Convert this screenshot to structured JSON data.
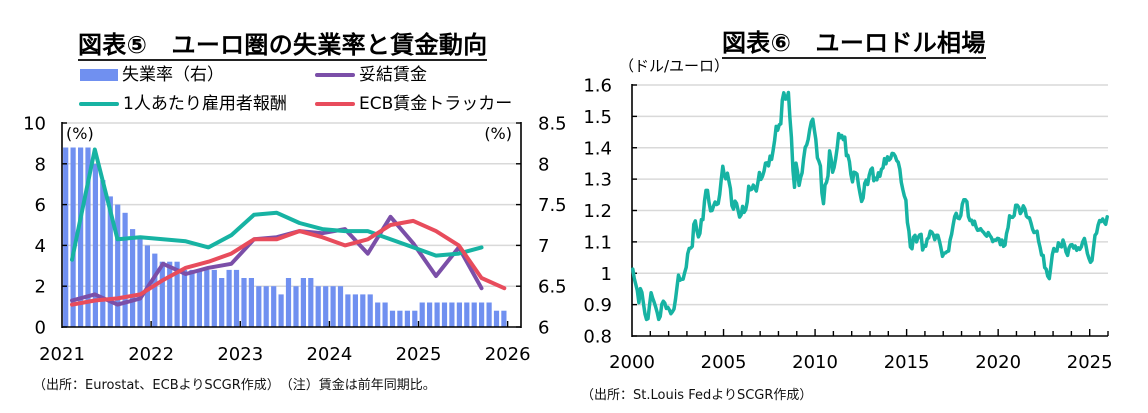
{
  "panels": {
    "left": {
      "title": "図表⑤　ユーロ圏の失業率と賃金動向",
      "legend": [
        {
          "label": "失業率（右）",
          "marker": "bar",
          "color": "#7090f0"
        },
        {
          "label": "妥結賃金",
          "marker": "line",
          "color": "#7b4fa8"
        },
        {
          "label": "1人あたり雇用者報酬",
          "marker": "line",
          "color": "#17b3a3"
        },
        {
          "label": "ECB賃金トラッカー",
          "marker": "line",
          "color": "#e84c5c"
        }
      ],
      "footnote": "（出所：Eurostat、ECBよりSCGR作成）　（注）賃金は前年同期比。"
    },
    "right": {
      "title": "図表⑥　ユーロドル相場",
      "unit_label": "（ドル/ユーロ）",
      "footnote": "（出所：St.Louis FedよりSCGR作成）"
    }
  },
  "chart_data": [
    {
      "type": "bar+line",
      "title": "図表⑤　ユーロ圏の失業率と賃金動向",
      "grid": true,
      "legend_position": "top",
      "x_axis": {
        "range": [
          2021,
          2026.15
        ],
        "ticks": [
          2021,
          2022,
          2023,
          2024,
          2025,
          2026
        ],
        "tick_labels": [
          "2021",
          "2022",
          "2023",
          "2024",
          "2025",
          "2026"
        ]
      },
      "y_left": {
        "unit_label": "(%)",
        "range": [
          0,
          10
        ],
        "ticks": [
          0,
          2,
          4,
          6,
          8,
          10
        ],
        "tick_labels": [
          "0",
          "2",
          "4",
          "6",
          "8",
          "10"
        ]
      },
      "y_right": {
        "unit_label": "(%)",
        "range": [
          6,
          8.5
        ],
        "ticks": [
          6,
          6.5,
          7,
          7.5,
          8,
          8.5
        ],
        "tick_labels": [
          "6",
          "6.5",
          "7",
          "7.5",
          "8",
          "8.5"
        ]
      },
      "bar_series": {
        "name": "失業率（右）",
        "axis": "right",
        "frequency": "monthly",
        "start": "2021-01",
        "color": "#7090f0",
        "values": [
          8.2,
          8.2,
          8.2,
          8.2,
          8.0,
          7.8,
          7.6,
          7.5,
          7.4,
          7.2,
          7.1,
          7.0,
          6.9,
          6.8,
          6.8,
          6.8,
          6.7,
          6.7,
          6.7,
          6.7,
          6.7,
          6.6,
          6.7,
          6.7,
          6.6,
          6.6,
          6.5,
          6.5,
          6.5,
          6.4,
          6.6,
          6.5,
          6.6,
          6.6,
          6.5,
          6.5,
          6.5,
          6.5,
          6.4,
          6.4,
          6.4,
          6.4,
          6.3,
          6.3,
          6.2,
          6.2,
          6.2,
          6.2,
          6.3,
          6.3,
          6.3,
          6.3,
          6.3,
          6.3,
          6.3,
          6.3,
          6.3,
          6.3,
          6.2,
          6.2
        ]
      },
      "quarters": [
        "2021Q1",
        "2021Q2",
        "2021Q3",
        "2021Q4",
        "2022Q1",
        "2022Q2",
        "2022Q3",
        "2022Q4",
        "2023Q1",
        "2023Q2",
        "2023Q3",
        "2023Q4",
        "2024Q1",
        "2024Q2",
        "2024Q3",
        "2024Q4",
        "2025Q1",
        "2025Q2",
        "2025Q3",
        "2025Q4"
      ],
      "line_series": [
        {
          "name": "妥結賃金",
          "axis": "left",
          "color": "#7b4fa8",
          "values": [
            1.3,
            1.6,
            1.1,
            1.4,
            3.1,
            2.6,
            2.9,
            3.1,
            4.3,
            4.4,
            4.7,
            4.6,
            4.8,
            3.6,
            5.4,
            4.1,
            2.5,
            3.9,
            1.9
          ]
        },
        {
          "name": "1人あたり雇用者報酬",
          "axis": "left",
          "color": "#17b3a3",
          "values": [
            3.3,
            8.7,
            4.3,
            4.4,
            4.3,
            4.2,
            3.9,
            4.5,
            5.5,
            5.6,
            5.1,
            4.8,
            4.7,
            4.7,
            4.3,
            3.9,
            3.5,
            3.6,
            3.9
          ]
        },
        {
          "name": "ECB賃金トラッカー",
          "axis": "left",
          "color": "#e84c5c",
          "values": [
            1.1,
            1.3,
            1.4,
            1.6,
            2.3,
            2.9,
            3.2,
            3.6,
            4.3,
            4.3,
            4.7,
            4.4,
            4.0,
            4.3,
            5.0,
            5.2,
            4.7,
            4.0,
            2.4,
            1.9
          ]
        }
      ]
    },
    {
      "type": "line",
      "title": "図表⑥　ユーロドル相場",
      "ylabel": "（ドル/ユーロ）",
      "grid": true,
      "legend_position": "none",
      "x_axis": {
        "range": [
          2000,
          2026
        ],
        "minor_tick_step": 1,
        "major_ticks": [
          2000,
          2005,
          2010,
          2015,
          2020,
          2025
        ],
        "tick_labels": [
          "2000",
          "2005",
          "2010",
          "2015",
          "2020",
          "2025"
        ]
      },
      "y_axis": {
        "range": [
          0.8,
          1.6
        ],
        "ticks": [
          0.8,
          0.9,
          1.0,
          1.1,
          1.2,
          1.3,
          1.4,
          1.5,
          1.6
        ],
        "tick_labels": [
          "0.8",
          "0.9",
          "1",
          "1.1",
          "1.2",
          "1.3",
          "1.4",
          "1.5",
          "1.6"
        ]
      },
      "series": [
        {
          "name": "EUR/USD",
          "frequency": "monthly",
          "start": "2000-01",
          "color": "#17b3a3",
          "values": [
            1.013,
            0.983,
            0.964,
            0.945,
            0.906,
            0.951,
            0.939,
            0.905,
            0.87,
            0.853,
            0.855,
            0.898,
            0.938,
            0.921,
            0.908,
            0.893,
            0.875,
            0.853,
            0.862,
            0.901,
            0.911,
            0.905,
            0.888,
            0.891,
            0.883,
            0.871,
            0.877,
            0.886,
            0.917,
            0.956,
            0.994,
            0.978,
            0.981,
            0.981,
            1.001,
            1.019,
            1.062,
            1.079,
            1.08,
            1.086,
            1.156,
            1.167,
            1.137,
            1.116,
            1.127,
            1.171,
            1.171,
            1.23,
            1.264,
            1.264,
            1.226,
            1.199,
            1.2,
            1.215,
            1.227,
            1.219,
            1.222,
            1.251,
            1.3,
            1.341,
            1.312,
            1.301,
            1.319,
            1.294,
            1.27,
            1.216,
            1.204,
            1.23,
            1.223,
            1.202,
            1.179,
            1.186,
            1.213,
            1.194,
            1.203,
            1.227,
            1.277,
            1.266,
            1.268,
            1.281,
            1.272,
            1.262,
            1.289,
            1.321,
            1.299,
            1.308,
            1.325,
            1.351,
            1.352,
            1.342,
            1.373,
            1.363,
            1.391,
            1.423,
            1.468,
            1.456,
            1.473,
            1.476,
            1.552,
            1.575,
            1.555,
            1.556,
            1.576,
            1.496,
            1.434,
            1.327,
            1.274,
            1.351,
            1.324,
            1.28,
            1.305,
            1.32,
            1.365,
            1.401,
            1.409,
            1.427,
            1.458,
            1.482,
            1.491,
            1.458,
            1.427,
            1.368,
            1.357,
            1.342,
            1.256,
            1.222,
            1.281,
            1.29,
            1.31,
            1.39,
            1.365,
            1.322,
            1.337,
            1.366,
            1.4,
            1.445,
            1.432,
            1.439,
            1.426,
            1.434,
            1.375,
            1.376,
            1.356,
            1.315,
            1.291,
            1.322,
            1.32,
            1.316,
            1.279,
            1.253,
            1.229,
            1.24,
            1.286,
            1.297,
            1.283,
            1.312,
            1.33,
            1.335,
            1.295,
            1.303,
            1.298,
            1.32,
            1.309,
            1.331,
            1.336,
            1.365,
            1.349,
            1.371,
            1.361,
            1.366,
            1.382,
            1.381,
            1.373,
            1.359,
            1.354,
            1.332,
            1.29,
            1.267,
            1.247,
            1.233,
            1.162,
            1.135,
            1.084,
            1.078,
            1.115,
            1.121,
            1.1,
            1.114,
            1.122,
            1.124,
            1.074,
            1.088,
            1.086,
            1.109,
            1.113,
            1.134,
            1.131,
            1.123,
            1.107,
            1.121,
            1.121,
            1.103,
            1.081,
            1.054,
            1.064,
            1.065,
            1.069,
            1.071,
            1.106,
            1.124,
            1.153,
            1.181,
            1.191,
            1.176,
            1.174,
            1.184,
            1.22,
            1.234,
            1.234,
            1.228,
            1.181,
            1.168,
            1.169,
            1.155,
            1.166,
            1.148,
            1.137,
            1.138,
            1.142,
            1.135,
            1.13,
            1.123,
            1.118,
            1.13,
            1.121,
            1.114,
            1.101,
            1.106,
            1.105,
            1.111,
            1.11,
            1.091,
            1.106,
            1.086,
            1.09,
            1.126,
            1.146,
            1.183,
            1.179,
            1.178,
            1.184,
            1.217,
            1.217,
            1.21,
            1.19,
            1.198,
            1.215,
            1.205,
            1.182,
            1.177,
            1.177,
            1.16,
            1.141,
            1.13,
            1.131,
            1.134,
            1.102,
            1.082,
            1.058,
            1.057,
            1.018,
            1.013,
            0.991,
            0.983,
            1.02,
            1.059,
            1.079,
            1.071,
            1.071,
            1.097,
            1.087,
            1.084,
            1.106,
            1.091,
            1.068,
            1.057,
            1.081,
            1.09,
            1.091,
            1.08,
            1.087,
            1.073,
            1.081,
            1.076,
            1.084,
            1.101,
            1.111,
            1.089,
            1.063,
            1.048,
            1.035,
            1.041,
            1.081,
            1.121,
            1.128,
            1.153,
            1.168,
            1.165,
            1.173,
            1.163,
            1.156,
            1.18
          ]
        }
      ]
    }
  ]
}
